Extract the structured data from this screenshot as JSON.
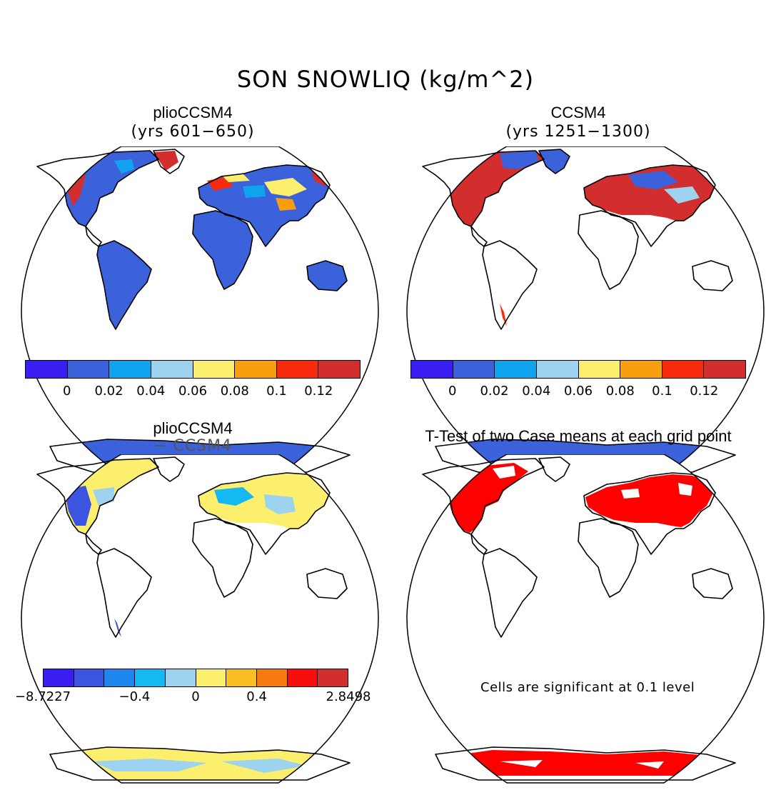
{
  "figure": {
    "title": "SON SNOWLIQ (kg/m^2)",
    "panels": [
      {
        "title": "plioCCSM4",
        "subtitle": "(yrs 601−650)"
      },
      {
        "title": "CCSM4",
        "subtitle": "(yrs 1251−1300)"
      },
      {
        "title": "plioCCSM4",
        "subtitle": "− CCSM4"
      },
      {
        "title": "T-Test of two Case means at each grid point",
        "subtitle": ""
      }
    ],
    "colorbar_top": {
      "labels": [
        "0",
        "0.02",
        "0.04",
        "0.06",
        "0.08",
        "0.1",
        "0.12"
      ],
      "colors": [
        "#3a1df2",
        "#3b62db",
        "#0fa3f0",
        "#9ed3f0",
        "#fcef6e",
        "#f99e0f",
        "#f92b0f",
        "#d32e2e"
      ]
    },
    "colorbar_diff": {
      "labels": [
        "−8.7227",
        "−0.4",
        "0",
        "0.4",
        "2.8498"
      ],
      "colors": [
        "#3a1df2",
        "#3b55e0",
        "#1f86f0",
        "#14b8f2",
        "#9ed3f0",
        "#fcef6e",
        "#fbbd24",
        "#f97a0f",
        "#f90e0e",
        "#d32e2e"
      ]
    },
    "significance_note": "Cells are significant at 0.1 level",
    "colors": {
      "snow_low": "#3b62db",
      "snow_high": "#d32e2e",
      "significant": "#ff0000",
      "diff_yellow": "#fcef6e",
      "diff_lightblue": "#9ed3f0"
    }
  }
}
